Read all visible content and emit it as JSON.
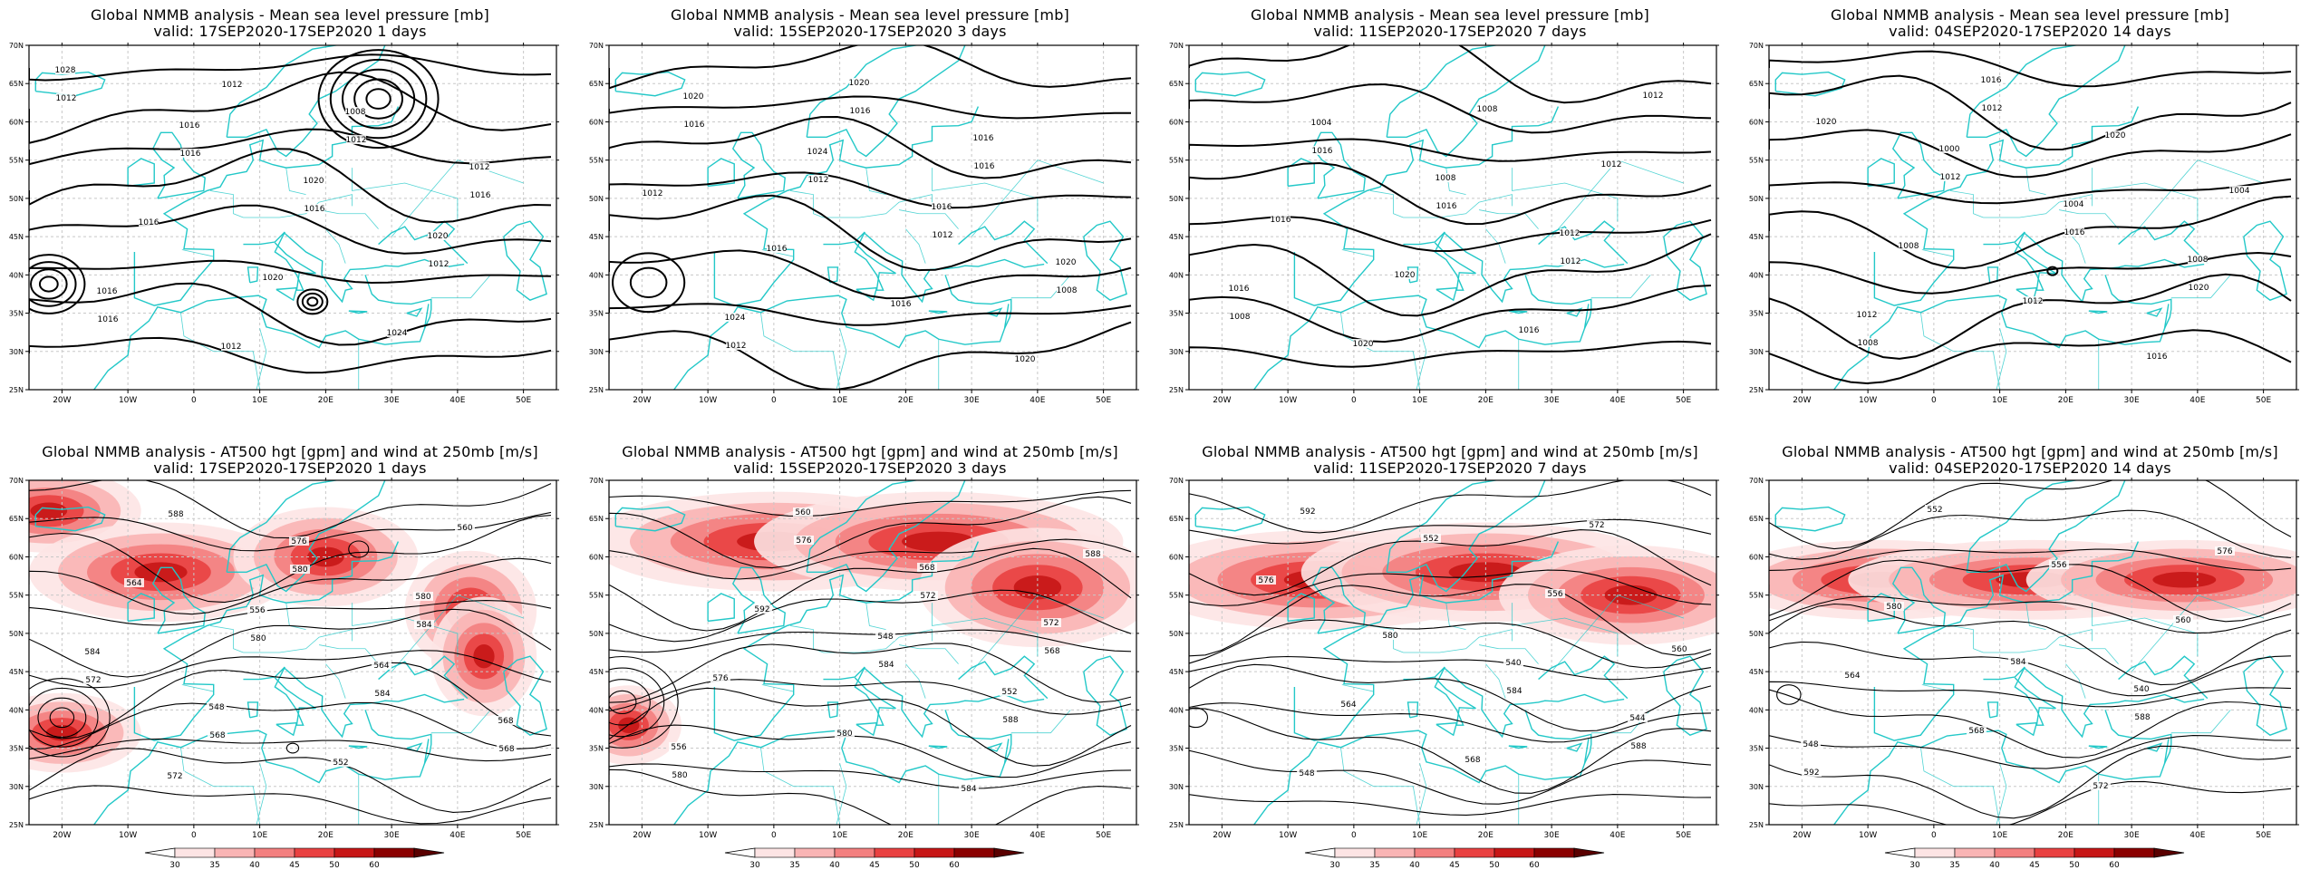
{
  "panels": [
    {
      "row": "mslp",
      "title1": "Global NMMB analysis - Mean sea level pressure [mb]",
      "title2": "valid: 17SEP2020-17SEP2020   1 days",
      "contour_labels": [
        "1028",
        "1016",
        "1020",
        "1020",
        "1016",
        "1012",
        "1008",
        "1012",
        "1016",
        "1020",
        "1024",
        "1012",
        "1016",
        "1016",
        "1012",
        "1016",
        "1012",
        "1012",
        "1016"
      ]
    },
    {
      "row": "mslp",
      "title1": "Global NMMB analysis - Mean sea level pressure [mb]",
      "title2": "valid: 15SEP2020-17SEP2020   3 days",
      "contour_labels": [
        "1020",
        "1024",
        "1016",
        "1020",
        "1024",
        "1020",
        "1016",
        "1012",
        "1016",
        "1016",
        "1020",
        "1016",
        "1012",
        "1012",
        "1008",
        "1012",
        "1016",
        "1016"
      ]
    },
    {
      "row": "mslp",
      "title1": "Global NMMB analysis - Mean sea level pressure [mb]",
      "title2": "valid: 11SEP2020-17SEP2020   7 days",
      "contour_labels": [
        "1004",
        "1008",
        "1012",
        "1016",
        "1020",
        "1008",
        "1012",
        "1016",
        "1020",
        "1016",
        "1012",
        "1016",
        "1016",
        "1012",
        "1008"
      ]
    },
    {
      "row": "mslp",
      "title1": "Global NMMB analysis - Mean sea level pressure [mb]",
      "title2": "valid: 04SEP2020-17SEP2020   14 days",
      "contour_labels": [
        "1000",
        "1004",
        "1008",
        "1012",
        "1016",
        "1020",
        "1004",
        "1008",
        "1012",
        "1016",
        "1020",
        "1012",
        "1016",
        "1020",
        "1008",
        "1012"
      ]
    },
    {
      "row": "z500",
      "title1": "Global NMMB analysis - AT500 hgt [gpm] and wind at 250mb [m/s]",
      "title2": "valid: 17SEP2020-17SEP2020   1 days",
      "contour_labels": [
        "556",
        "564",
        "568",
        "572",
        "576",
        "580",
        "584",
        "548",
        "552",
        "560",
        "564",
        "580",
        "584",
        "568",
        "588",
        "580",
        "584",
        "572",
        "568"
      ]
    },
    {
      "row": "z500",
      "title1": "Global NMMB analysis - AT500 hgt [gpm] and wind at 250mb [m/s]",
      "title2": "valid: 15SEP2020-17SEP2020   3 days",
      "contour_labels": [
        "548",
        "552",
        "556",
        "560",
        "568",
        "572",
        "576",
        "580",
        "584",
        "588",
        "592",
        "584",
        "588",
        "580",
        "576",
        "572",
        "568"
      ]
    },
    {
      "row": "z500",
      "title1": "Global NMMB analysis - AT500 hgt [gpm] and wind at 250mb [m/s]",
      "title2": "valid: 11SEP2020-17SEP2020   7 days",
      "contour_labels": [
        "540",
        "544",
        "548",
        "552",
        "556",
        "560",
        "564",
        "568",
        "572",
        "576",
        "580",
        "584",
        "588",
        "592"
      ]
    },
    {
      "row": "z500",
      "title1": "Global NMMB analysis - AT500 hgt [gpm] and wind at 250mb [m/s]",
      "title2": "valid: 04SEP2020-17SEP2020   14 days",
      "contour_labels": [
        "540",
        "548",
        "552",
        "556",
        "560",
        "564",
        "568",
        "572",
        "576",
        "580",
        "584",
        "588",
        "592"
      ]
    }
  ],
  "axes": {
    "lon_ticks": [
      "20W",
      "10W",
      "0",
      "10E",
      "20E",
      "30E",
      "40E",
      "50E"
    ],
    "lat_ticks": [
      "70N",
      "65N",
      "60N",
      "55N",
      "50N",
      "45N",
      "40N",
      "35N",
      "30N",
      "25N"
    ]
  },
  "colorbar": {
    "ticks": [
      "30",
      "35",
      "40",
      "45",
      "50",
      "60"
    ],
    "colors": [
      "#fde4e4",
      "#f9b4b4",
      "#f37f7f",
      "#e94141",
      "#c71616",
      "#8a0000",
      "#5a0000"
    ]
  },
  "colors": {
    "coast": "#23c8c8",
    "contour": "#000000",
    "grid": "#c8c8c8"
  }
}
